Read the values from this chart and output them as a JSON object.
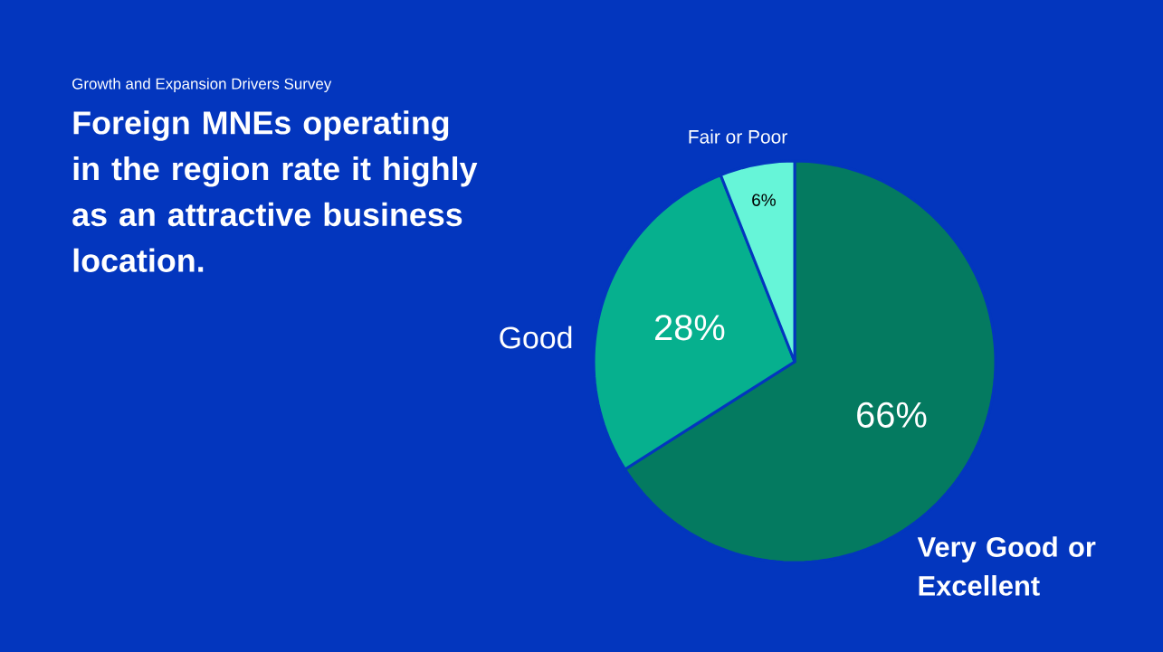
{
  "chart_data": {
    "type": "pie",
    "subtitle": "Growth and Expansion Drivers Survey",
    "title": "Foreign MNEs operating in the region rate it highly as an attractive business location.",
    "categories": [
      "Very Good or Excellent",
      "Good",
      "Fair or Poor"
    ],
    "values": [
      66,
      28,
      6
    ],
    "colors": [
      "#047a60",
      "#06b08e",
      "#66f5d8"
    ],
    "value_labels": [
      "66%",
      "28%",
      "6%"
    ]
  }
}
